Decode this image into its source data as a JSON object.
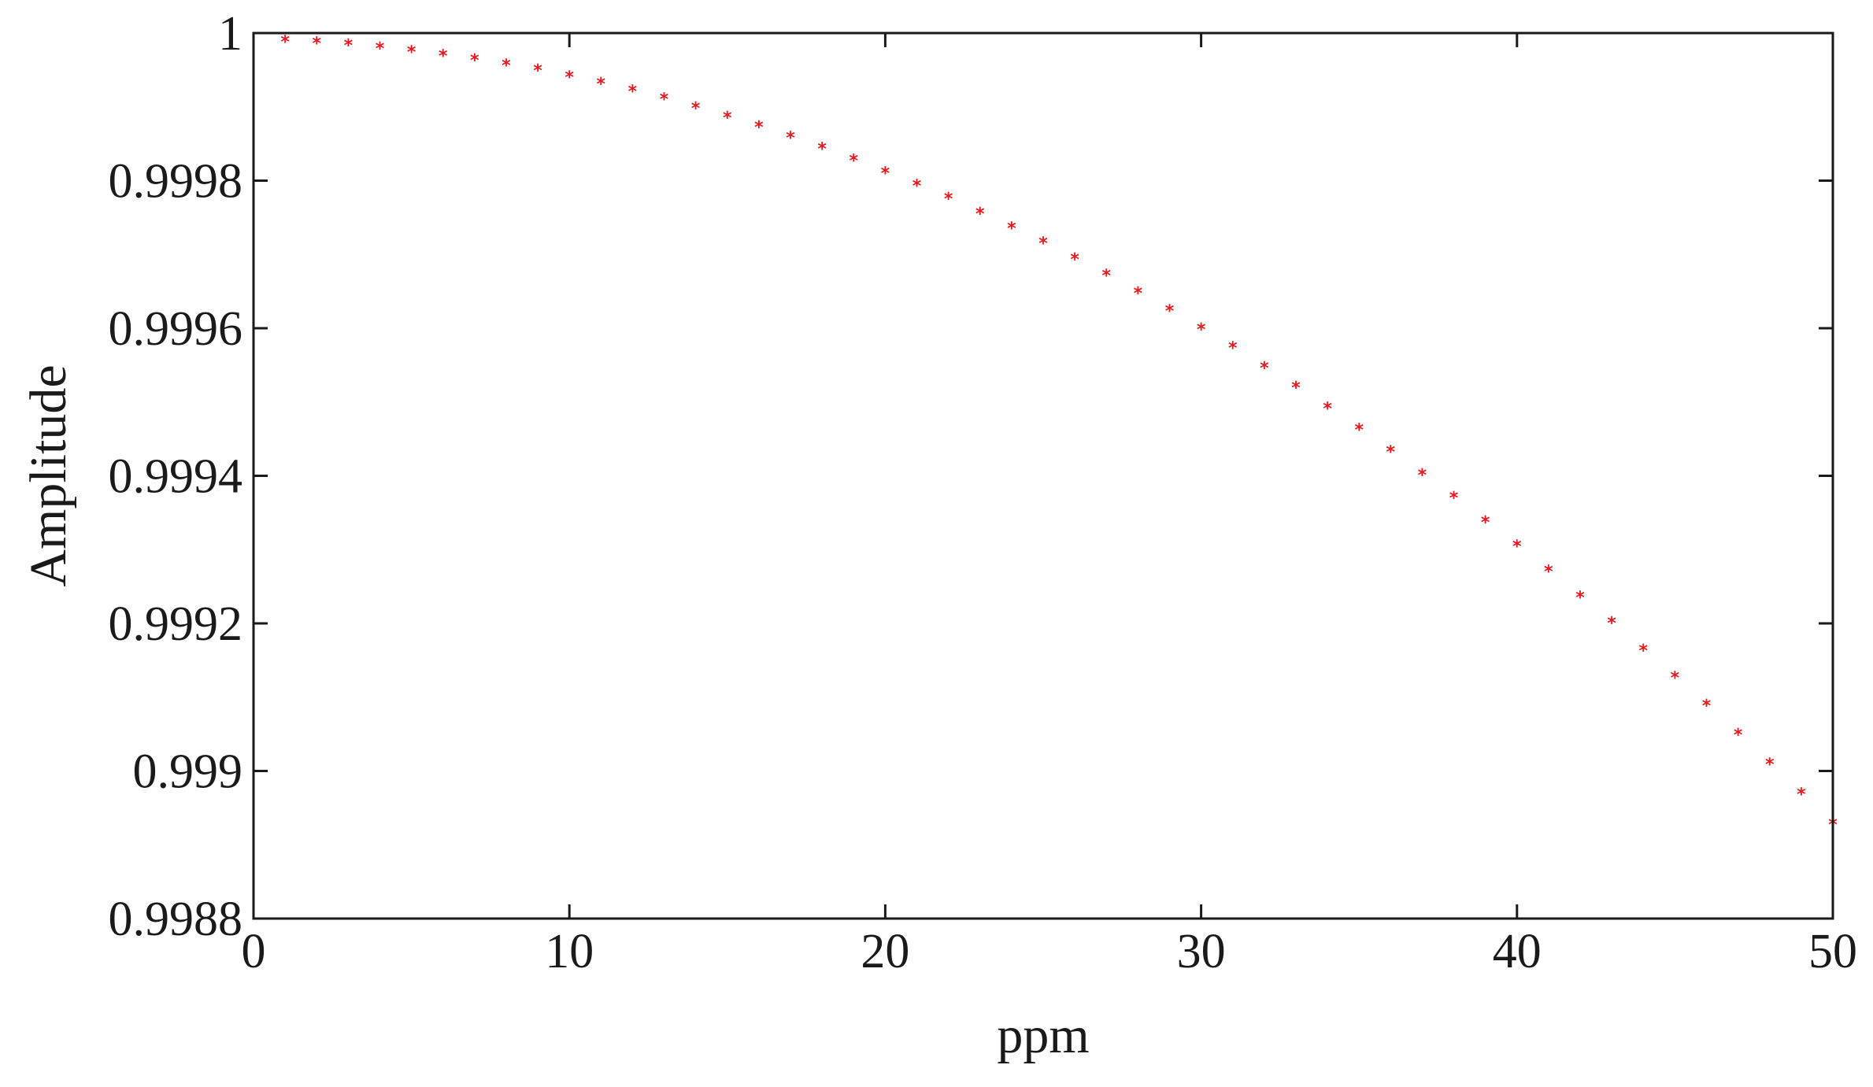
{
  "chart_data": {
    "type": "scatter",
    "title": "",
    "xlabel": "ppm",
    "ylabel": "Amplitude",
    "xlim": [
      0,
      50
    ],
    "ylim": [
      0.9988,
      1
    ],
    "grid": false,
    "legend": "none",
    "marker": "*",
    "colors": {
      "marker": "#e8191c",
      "axis": "#1a1a1a",
      "background": "#ffffff"
    },
    "x_ticks": [
      0,
      10,
      20,
      30,
      40,
      50
    ],
    "x_tick_labels": [
      "0",
      "10",
      "20",
      "30",
      "40",
      "50"
    ],
    "y_ticks": [
      0.9988,
      0.999,
      0.9992,
      0.9994,
      0.9996,
      0.9998,
      1
    ],
    "y_tick_labels": [
      "0.9988",
      "0.999",
      "0.9992",
      "0.9994",
      "0.9996",
      "0.9998",
      "1"
    ],
    "x": [
      1,
      2,
      3,
      4,
      5,
      6,
      7,
      8,
      9,
      10,
      11,
      12,
      13,
      14,
      15,
      16,
      17,
      18,
      19,
      20,
      21,
      22,
      23,
      24,
      25,
      26,
      27,
      28,
      29,
      30,
      31,
      32,
      33,
      34,
      35,
      36,
      37,
      38,
      39,
      40,
      41,
      42,
      43,
      44,
      45,
      46,
      47,
      48,
      49,
      50
    ],
    "y": [
      0.999991,
      0.999989,
      0.999986,
      0.999982,
      0.999977,
      0.999972,
      0.999966,
      0.999959,
      0.999952,
      0.999943,
      0.999934,
      0.999924,
      0.999913,
      0.999901,
      0.999888,
      0.999875,
      0.999861,
      0.999846,
      0.99983,
      0.999813,
      0.999796,
      0.999778,
      0.999758,
      0.999738,
      0.999718,
      0.999696,
      0.999674,
      0.99965,
      0.999626,
      0.999601,
      0.999576,
      0.999549,
      0.999522,
      0.999494,
      0.999465,
      0.999435,
      0.999404,
      0.999373,
      0.99934,
      0.999307,
      0.999273,
      0.999238,
      0.999203,
      0.999166,
      0.999129,
      0.999091,
      0.999052,
      0.999012,
      0.998971,
      0.99893
    ]
  }
}
